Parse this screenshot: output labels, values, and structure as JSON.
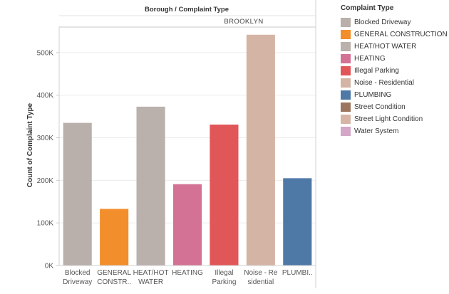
{
  "header": {
    "column_title": "Borough / Complaint Type",
    "pane_label": "BROOKLYN"
  },
  "legend": {
    "title": "Complaint Type",
    "items": [
      {
        "label": "Blocked Driveway",
        "color": "#b9b0ab"
      },
      {
        "label": "GENERAL CONSTRUCTION",
        "color": "#f28e2b"
      },
      {
        "label": "HEAT/HOT WATER",
        "color": "#bab0ac"
      },
      {
        "label": "HEATING",
        "color": "#d37295"
      },
      {
        "label": "Illegal Parking",
        "color": "#e15759"
      },
      {
        "label": "Noise - Residential",
        "color": "#d4b5a5"
      },
      {
        "label": "PLUMBING",
        "color": "#4e79a7"
      },
      {
        "label": "Street Condition",
        "color": "#9c755f"
      },
      {
        "label": "Street Light Condition",
        "color": "#d7b5a6"
      },
      {
        "label": "Water System",
        "color": "#d4a6c8"
      }
    ]
  },
  "chart_data": {
    "type": "bar",
    "title": "Borough / Complaint Type",
    "facet": "BROOKLYN",
    "ylabel": "Count of Complaint Type",
    "ylim": [
      0,
      560000
    ],
    "yticks": [
      {
        "value": 0,
        "label": "0K"
      },
      {
        "value": 100000,
        "label": "100K"
      },
      {
        "value": 200000,
        "label": "200K"
      },
      {
        "value": 300000,
        "label": "300K"
      },
      {
        "value": 400000,
        "label": "400K"
      },
      {
        "value": 500000,
        "label": "500K"
      }
    ],
    "grid": true,
    "legend_position": "right",
    "categories": [
      {
        "lines": [
          "Blocked",
          "Driveway"
        ],
        "value": 335000,
        "color": "#b9b0ab"
      },
      {
        "lines": [
          "GENERAL",
          "CONSTR.."
        ],
        "value": 133000,
        "color": "#f28e2b"
      },
      {
        "lines": [
          "HEAT/HOT",
          "WATER"
        ],
        "value": 373000,
        "color": "#bab0ac"
      },
      {
        "lines": [
          "HEATING"
        ],
        "value": 191000,
        "color": "#d37295"
      },
      {
        "lines": [
          "Illegal",
          "Parking"
        ],
        "value": 331000,
        "color": "#e15759"
      },
      {
        "lines": [
          "Noise - Re",
          "sidential"
        ],
        "value": 542000,
        "color": "#d4b5a5"
      },
      {
        "lines": [
          "PLUMBI.."
        ],
        "value": 205000,
        "color": "#4e79a7"
      }
    ]
  }
}
